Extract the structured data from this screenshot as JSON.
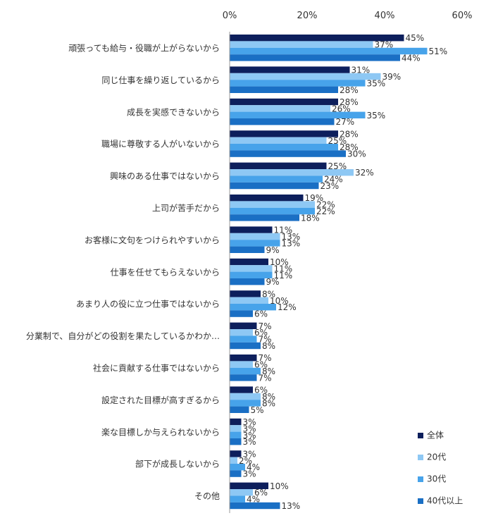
{
  "chart_data": {
    "type": "bar",
    "orientation": "horizontal",
    "xlim": [
      0,
      60
    ],
    "x_ticks": [
      0,
      20,
      40,
      60
    ],
    "tick_suffix": "%",
    "grid": false,
    "legend_position": "bottom-right",
    "categories": [
      "頑張っても給与・役職が上がらないから",
      "同じ仕事を繰り返しているから",
      "成長を実感できないから",
      "職場に尊敬する人がいないから",
      "興味のある仕事ではないから",
      "上司が苦手だから",
      "お客様に文句をつけられやすいから",
      "仕事を任せてもらえないから",
      "あまり人の役に立つ仕事ではないから",
      "分業制で、自分がどの役割を果たしているかわか…",
      "社会に貢献する仕事ではないから",
      "設定された目標が高すぎるから",
      "楽な目標しか与えられないから",
      "部下が成長しないから",
      "その他"
    ],
    "series": [
      {
        "name": "全体",
        "color": "#0d1f5c",
        "values": [
          45,
          31,
          28,
          28,
          25,
          19,
          11,
          10,
          8,
          7,
          7,
          6,
          3,
          3,
          10
        ]
      },
      {
        "name": "20代",
        "color": "#8ec8f4",
        "values": [
          37,
          39,
          26,
          25,
          32,
          22,
          13,
          11,
          10,
          6,
          6,
          8,
          3,
          2,
          6
        ]
      },
      {
        "name": "30代",
        "color": "#47a3ea",
        "values": [
          51,
          35,
          35,
          28,
          24,
          22,
          13,
          11,
          12,
          7,
          8,
          8,
          3,
          4,
          4
        ]
      },
      {
        "name": "40代以上",
        "color": "#1a6fc4",
        "values": [
          44,
          28,
          27,
          30,
          23,
          18,
          9,
          9,
          6,
          8,
          7,
          5,
          3,
          3,
          13
        ]
      }
    ]
  }
}
